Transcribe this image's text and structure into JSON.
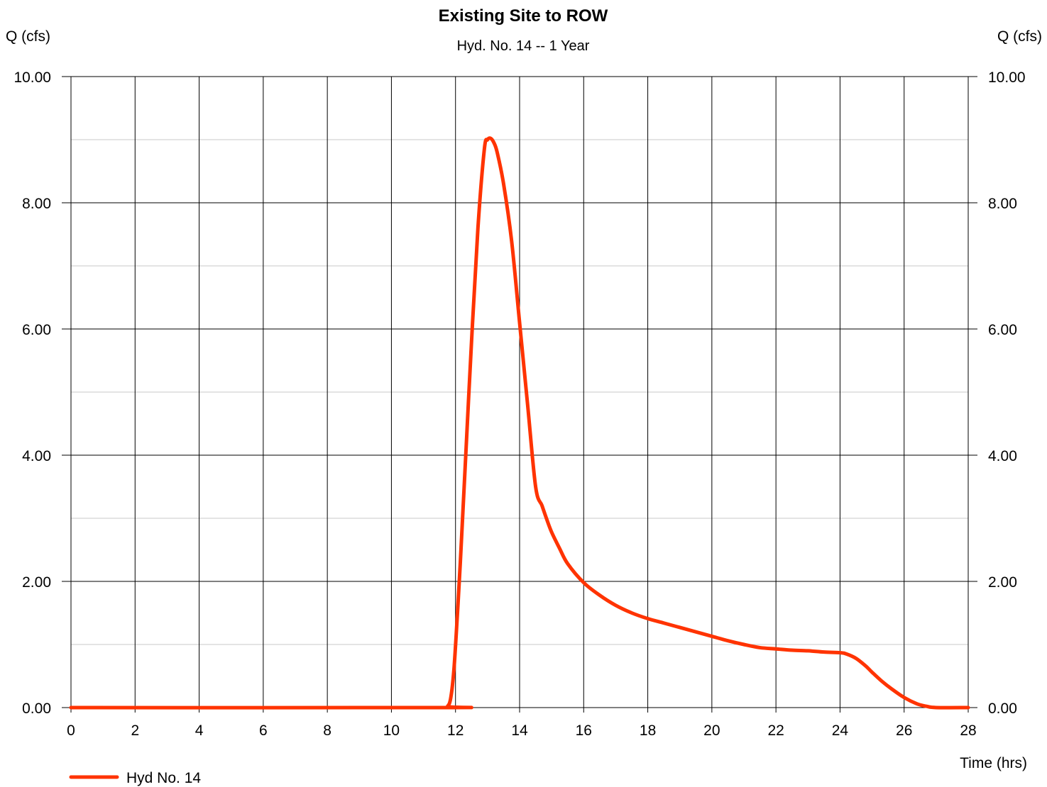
{
  "chart_data": {
    "type": "line",
    "title": "Existing Site to ROW",
    "subtitle": "Hyd. No. 14 -- 1 Year",
    "ylabel_left": "Q (cfs)",
    "ylabel_right": "Q (cfs)",
    "xlabel": "Time (hrs)",
    "xlim": [
      0,
      28
    ],
    "ylim": [
      0,
      10
    ],
    "x_ticks": [
      "0",
      "2",
      "4",
      "6",
      "8",
      "10",
      "12",
      "14",
      "16",
      "18",
      "20",
      "22",
      "24",
      "26",
      "28"
    ],
    "y_ticks": [
      "0.00",
      "2.00",
      "4.00",
      "6.00",
      "8.00",
      "10.00"
    ],
    "grid": true,
    "legend_position": "bottom-left",
    "series": [
      {
        "name": "Hyd No. 14",
        "color": "#ff3300",
        "x": [
          0,
          11.6,
          11.75,
          11.85,
          11.95,
          12.05,
          12.15,
          12.3,
          12.5,
          12.7,
          12.9,
          13.0,
          13.1,
          13.2,
          13.3,
          13.5,
          13.75,
          14.0,
          14.25,
          14.5,
          14.7,
          14.85,
          15.0,
          15.25,
          15.5,
          16.0,
          16.5,
          17.0,
          17.5,
          18.0,
          18.5,
          19.0,
          19.5,
          20.0,
          20.5,
          21.0,
          21.5,
          22.0,
          22.5,
          23.0,
          23.5,
          24.0,
          24.2,
          24.5,
          24.8,
          25.0,
          25.3,
          25.6,
          26.0,
          26.4,
          26.7,
          27.0,
          28.0
        ],
        "y": [
          0,
          0,
          0.02,
          0.15,
          0.6,
          1.4,
          2.3,
          3.8,
          5.8,
          7.6,
          8.85,
          9.0,
          9.02,
          8.95,
          8.8,
          8.3,
          7.4,
          6.1,
          4.8,
          3.5,
          3.2,
          2.98,
          2.78,
          2.52,
          2.28,
          1.98,
          1.78,
          1.62,
          1.5,
          1.41,
          1.34,
          1.27,
          1.2,
          1.13,
          1.06,
          1.0,
          0.95,
          0.93,
          0.91,
          0.9,
          0.88,
          0.87,
          0.85,
          0.78,
          0.66,
          0.56,
          0.42,
          0.3,
          0.16,
          0.06,
          0.02,
          0.0,
          0.0
        ]
      }
    ]
  }
}
